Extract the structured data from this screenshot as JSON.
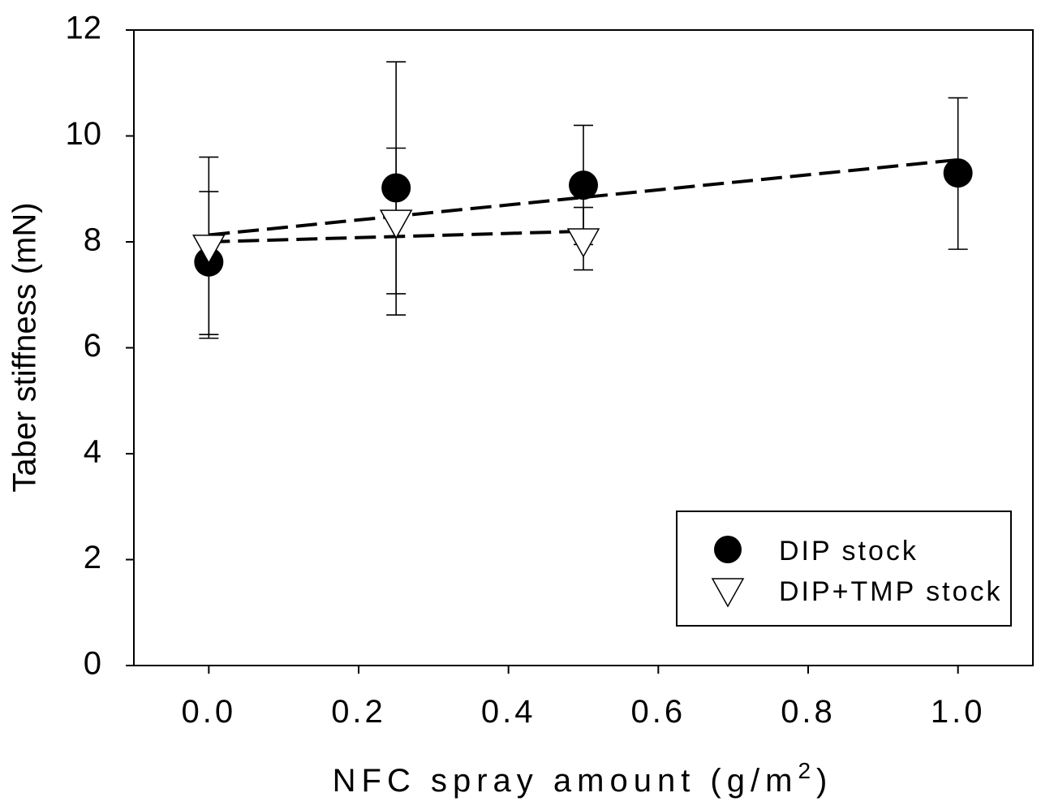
{
  "chart_data": {
    "type": "scatter",
    "xlabel": "NFC spray amount (g/m",
    "xlabel_sup": "2",
    "xlabel_end": ")",
    "ylabel": "Taber stiffness (mN)",
    "xlim": [
      -0.1,
      1.1
    ],
    "ylim": [
      0,
      12
    ],
    "xticks": [
      "0.0",
      "0.2",
      "0.4",
      "0.6",
      "0.8",
      "1.0"
    ],
    "xtick_values": [
      0.0,
      0.2,
      0.4,
      0.6,
      0.8,
      1.0
    ],
    "yticks": [
      "0",
      "2",
      "4",
      "6",
      "8",
      "10",
      "12"
    ],
    "ytick_values": [
      0,
      2,
      4,
      6,
      8,
      10,
      12
    ],
    "grid": false,
    "legend_position": "bottom-right",
    "series": [
      {
        "name": "DIP stock",
        "marker": "filled-circle",
        "x": [
          0.0,
          0.25,
          0.5,
          1.0
        ],
        "y": [
          7.62,
          9.02,
          9.07,
          9.3
        ],
        "err_low": [
          6.25,
          6.62,
          7.95,
          7.86
        ],
        "err_high": [
          8.95,
          11.4,
          10.2,
          10.72
        ],
        "trend": {
          "x": [
            0.0,
            1.0
          ],
          "y": [
            8.13,
            9.55
          ]
        }
      },
      {
        "name": "DIP+TMP stock",
        "marker": "open-triangle-down",
        "x": [
          0.0,
          0.25,
          0.5
        ],
        "y": [
          7.88,
          8.35,
          8.0
        ],
        "err_low": [
          6.18,
          7.02,
          7.47
        ],
        "err_high": [
          9.6,
          9.77,
          8.65
        ],
        "trend": {
          "x": [
            0.0,
            0.5
          ],
          "y": [
            8.0,
            8.2
          ]
        }
      }
    ],
    "colors": {
      "axis": "#000000",
      "marker_fill": "#000000",
      "open_marker_fill": "#ffffff"
    }
  }
}
